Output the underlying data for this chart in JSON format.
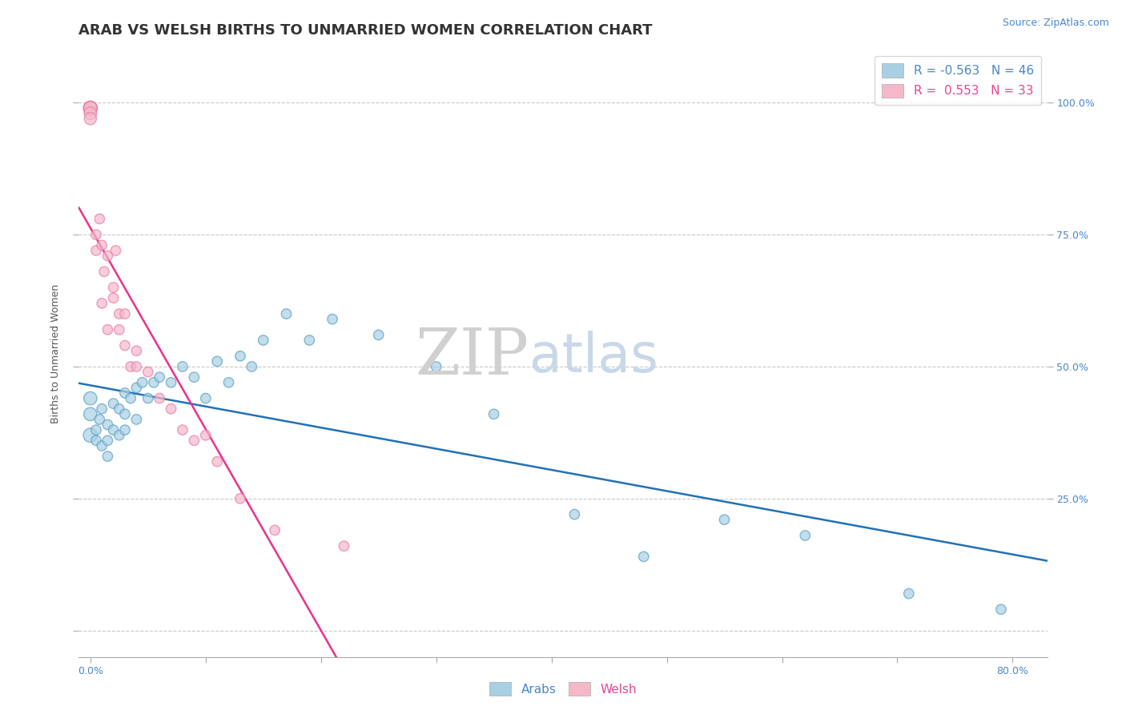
{
  "title": "ARAB VS WELSH BIRTHS TO UNMARRIED WOMEN CORRELATION CHART",
  "source": "Source: ZipAtlas.com",
  "ylabel": "Births to Unmarried Women",
  "right_yticks": [
    "100.0%",
    "75.0%",
    "50.0%",
    "25.0%"
  ],
  "right_ytick_vals": [
    1.0,
    0.75,
    0.5,
    0.25
  ],
  "xlim": [
    -0.01,
    0.83
  ],
  "ylim": [
    -0.05,
    1.1
  ],
  "arab_R": -0.563,
  "arab_N": 46,
  "welsh_R": 0.553,
  "welsh_N": 33,
  "arab_color": "#a8cfe3",
  "welsh_color": "#f5b8c8",
  "arab_edge_color": "#5b9fc4",
  "welsh_edge_color": "#e87aaa",
  "arab_line_color": "#2171b5",
  "welsh_line_color": "#e8328a",
  "background_color": "#ffffff",
  "grid_color": "#c8c8c8",
  "arab_points_x": [
    0.0,
    0.0,
    0.0,
    0.005,
    0.005,
    0.008,
    0.01,
    0.01,
    0.015,
    0.015,
    0.015,
    0.02,
    0.02,
    0.025,
    0.025,
    0.03,
    0.03,
    0.03,
    0.035,
    0.04,
    0.04,
    0.045,
    0.05,
    0.055,
    0.06,
    0.07,
    0.08,
    0.09,
    0.1,
    0.11,
    0.12,
    0.13,
    0.14,
    0.15,
    0.17,
    0.19,
    0.21,
    0.25,
    0.3,
    0.35,
    0.42,
    0.48,
    0.55,
    0.62,
    0.71,
    0.79
  ],
  "arab_points_y": [
    0.37,
    0.41,
    0.44,
    0.36,
    0.38,
    0.4,
    0.35,
    0.42,
    0.33,
    0.36,
    0.39,
    0.38,
    0.43,
    0.37,
    0.42,
    0.38,
    0.41,
    0.45,
    0.44,
    0.4,
    0.46,
    0.47,
    0.44,
    0.47,
    0.48,
    0.47,
    0.5,
    0.48,
    0.44,
    0.51,
    0.47,
    0.52,
    0.5,
    0.55,
    0.6,
    0.55,
    0.59,
    0.56,
    0.5,
    0.41,
    0.22,
    0.14,
    0.21,
    0.18,
    0.07,
    0.04
  ],
  "welsh_points_x": [
    0.0,
    0.0,
    0.0,
    0.0,
    0.0,
    0.005,
    0.005,
    0.008,
    0.01,
    0.01,
    0.012,
    0.015,
    0.015,
    0.02,
    0.02,
    0.022,
    0.025,
    0.025,
    0.03,
    0.03,
    0.035,
    0.04,
    0.04,
    0.05,
    0.06,
    0.07,
    0.08,
    0.09,
    0.1,
    0.11,
    0.13,
    0.16,
    0.22
  ],
  "welsh_points_y": [
    0.99,
    0.99,
    0.99,
    0.98,
    0.97,
    0.75,
    0.72,
    0.78,
    0.73,
    0.62,
    0.68,
    0.71,
    0.57,
    0.65,
    0.63,
    0.72,
    0.57,
    0.6,
    0.54,
    0.6,
    0.5,
    0.5,
    0.53,
    0.49,
    0.44,
    0.42,
    0.38,
    0.36,
    0.37,
    0.32,
    0.25,
    0.19,
    0.16
  ],
  "arab_point_sizes": [
    160,
    140,
    140,
    80,
    80,
    80,
    80,
    80,
    80,
    80,
    80,
    80,
    80,
    80,
    80,
    80,
    80,
    80,
    80,
    80,
    80,
    80,
    80,
    80,
    80,
    80,
    80,
    80,
    80,
    80,
    80,
    80,
    80,
    80,
    80,
    80,
    80,
    80,
    80,
    80,
    80,
    80,
    80,
    80,
    80,
    80
  ],
  "welsh_point_sizes": [
    160,
    150,
    140,
    130,
    120,
    80,
    80,
    80,
    80,
    80,
    80,
    80,
    80,
    80,
    80,
    80,
    80,
    80,
    80,
    80,
    80,
    80,
    80,
    80,
    80,
    80,
    80,
    80,
    80,
    80,
    80,
    80,
    80
  ],
  "title_fontsize": 13,
  "axis_label_fontsize": 9,
  "legend_fontsize": 11,
  "source_fontsize": 9,
  "watermark_zip_color": "#d0d0d0",
  "watermark_atlas_color": "#c8d8e8",
  "legend_arab_color": "#a8cfe3",
  "legend_welsh_color": "#f5b8c8"
}
